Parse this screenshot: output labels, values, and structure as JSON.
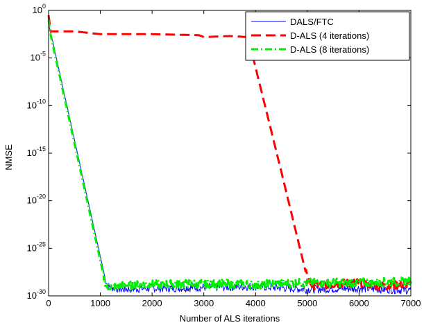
{
  "chart_data": {
    "type": "line",
    "xlabel": "Number of ALS iterations",
    "ylabel": "NMSE",
    "xlim": [
      0,
      7000
    ],
    "ylim_log10": [
      -30,
      0
    ],
    "y_scale": "log",
    "grid": false,
    "legend_position": "top-right",
    "x_ticks": [
      0,
      1000,
      2000,
      3000,
      4000,
      5000,
      6000,
      7000
    ],
    "x_tick_labels": [
      "0",
      "1000",
      "2000",
      "3000",
      "4000",
      "5000",
      "6000",
      "7000"
    ],
    "y_ticks_log10": [
      0,
      -5,
      -10,
      -15,
      -20,
      -25,
      -30
    ],
    "y_tick_labels": [
      {
        "base": "10",
        "exp": "0"
      },
      {
        "base": "10",
        "exp": "-5"
      },
      {
        "base": "10",
        "exp": "-10"
      },
      {
        "base": "10",
        "exp": "-15"
      },
      {
        "base": "10",
        "exp": "-20"
      },
      {
        "base": "10",
        "exp": "-25"
      },
      {
        "base": "10",
        "exp": "-30"
      }
    ],
    "series": [
      {
        "name": "DALS/FTC",
        "color": "#0000ff",
        "style": "solid",
        "x": [
          0,
          50,
          1100,
          1150,
          1400,
          2000,
          3000,
          4000,
          5000,
          6000,
          7000
        ],
        "log10_y": [
          -1.5,
          -2.5,
          -28.3,
          -29.0,
          -29.3,
          -29.2,
          -29.1,
          -29.0,
          -29.3,
          -29.2,
          -29.4
        ]
      },
      {
        "name": "D-ALS (4 iterations)",
        "color": "#ff0000",
        "style": "dashed",
        "x": [
          0,
          40,
          500,
          1000,
          2000,
          2900,
          3000,
          3500,
          3850,
          3880,
          4000,
          4500,
          5000,
          5100,
          6000,
          6500,
          7000
        ],
        "log10_y": [
          -0.5,
          -2.2,
          -2.2,
          -2.5,
          -2.5,
          -2.6,
          -2.8,
          -2.7,
          -2.8,
          -3.3,
          -6.0,
          -17.0,
          -28.2,
          -28.9,
          -28.6,
          -29.0,
          -28.7
        ]
      },
      {
        "name": "D-ALS (8 iterations)",
        "color": "#00ee00",
        "style": "dashdot",
        "x": [
          0,
          40,
          1080,
          1120,
          1500,
          2000,
          3000,
          4000,
          5000,
          6000,
          7000
        ],
        "log10_y": [
          -1.0,
          -2.6,
          -28.3,
          -29.0,
          -28.9,
          -28.8,
          -28.7,
          -28.8,
          -28.6,
          -28.6,
          -28.5
        ]
      }
    ]
  }
}
